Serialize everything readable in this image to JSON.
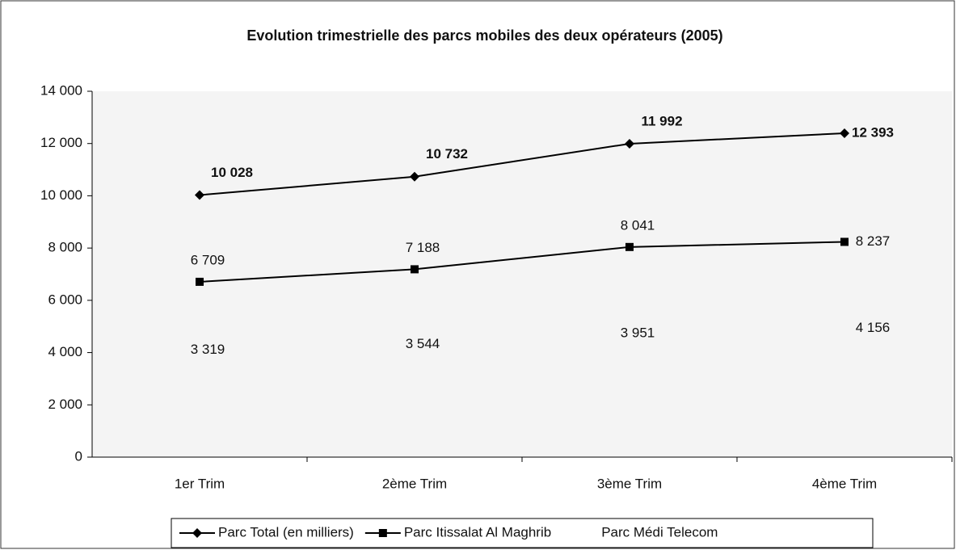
{
  "chart_data": {
    "type": "line",
    "title": "Evolution trimestrielle des parcs mobiles des deux opérateurs (2005)",
    "categories": [
      "1er Trim",
      "2ème Trim",
      "3ème Trim",
      "4ème Trim"
    ],
    "series": [
      {
        "name": "Parc Total (en milliers)",
        "color": "#000000",
        "marker": "diamond",
        "values": [
          10028,
          10732,
          11992,
          12393
        ],
        "value_labels": [
          "10 028",
          "10 732",
          "11 992",
          "12 393"
        ]
      },
      {
        "name": "Parc Itissalat Al Maghrib",
        "color": "#000000",
        "marker": "square",
        "values": [
          6709,
          7188,
          8041,
          8237
        ],
        "value_labels": [
          "6 709",
          "7 188",
          "8 041",
          "8 237"
        ]
      },
      {
        "name": "Parc Médi Telecom",
        "color": "none",
        "marker": "none",
        "values": [
          3319,
          3544,
          3951,
          4156
        ],
        "value_labels": [
          "3 319",
          "3 544",
          "3 951",
          "4 156"
        ]
      }
    ],
    "ylim": [
      0,
      14000
    ],
    "yticks": [
      0,
      {
        "value": 2000,
        "label": "2 000"
      },
      {
        "value": 4000,
        "label": "4 000"
      },
      {
        "value": 6000,
        "label": "6 000"
      },
      {
        "value": 8000,
        "label": "8 000"
      },
      {
        "value": 10000,
        "label": "10 000"
      },
      {
        "value": 12000,
        "label": "12 000"
      },
      {
        "value": 14000,
        "label": "14 000"
      }
    ],
    "legend": "bottom"
  }
}
